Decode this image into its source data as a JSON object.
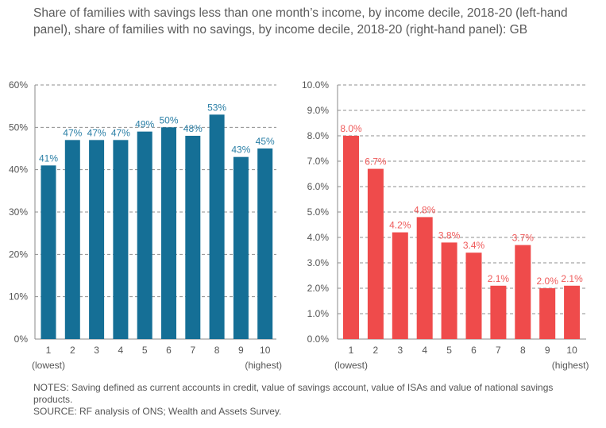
{
  "title": "Share of families with savings less than one month’s income, by income decile, 2018-20 (left-hand panel), share of families with no savings, by income decile, 2018-20 (right-hand panel): GB",
  "notes": "NOTES: Saving defined as current accounts in credit, value of savings account, value of ISAs and value of national savings products.",
  "source": "SOURCE: RF analysis of ONS; Wealth and Assets Survey.",
  "chart_data": [
    {
      "type": "bar",
      "categories": [
        "1",
        "2",
        "3",
        "4",
        "5",
        "6",
        "7",
        "8",
        "9",
        "10"
      ],
      "category_notes": {
        "first": "(lowest)",
        "last": "(highest)"
      },
      "values": [
        41,
        47,
        47,
        47,
        49,
        50,
        48,
        53,
        43,
        45
      ],
      "data_labels": [
        "41%",
        "47%",
        "47%",
        "47%",
        "49%",
        "50%",
        "48%",
        "53%",
        "43%",
        "45%"
      ],
      "ylim": [
        0,
        60
      ],
      "yticks": [
        "0%",
        "10%",
        "20%",
        "30%",
        "40%",
        "50%",
        "60%"
      ],
      "color": "#156f96",
      "label_color": "#2a7fa6",
      "grid": true
    },
    {
      "type": "bar",
      "categories": [
        "1",
        "2",
        "3",
        "4",
        "5",
        "6",
        "7",
        "8",
        "9",
        "10"
      ],
      "category_notes": {
        "first": "(lowest)",
        "last": "(highest)"
      },
      "values": [
        8.0,
        6.7,
        4.2,
        4.8,
        3.8,
        3.4,
        2.1,
        3.7,
        2.0,
        2.1
      ],
      "data_labels": [
        "8.0%",
        "6.7%",
        "4.2%",
        "4.8%",
        "3.8%",
        "3.4%",
        "2.1%",
        "3.7%",
        "2.0%",
        "2.1%"
      ],
      "ylim": [
        0,
        10
      ],
      "yticks": [
        "0.0%",
        "1.0%",
        "2.0%",
        "3.0%",
        "4.0%",
        "5.0%",
        "6.0%",
        "7.0%",
        "8.0%",
        "9.0%",
        "10.0%"
      ],
      "color": "#ef4b4b",
      "label_color": "#ef5a5a",
      "grid": true
    }
  ]
}
